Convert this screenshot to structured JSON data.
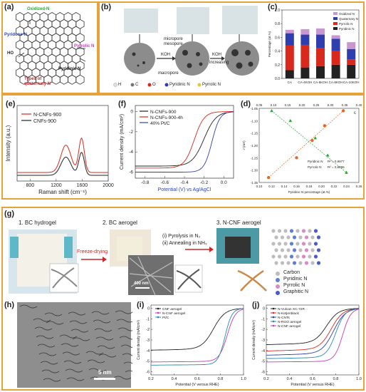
{
  "panels": {
    "a": {
      "label": "(a)",
      "labels": {
        "oxidized": "Oxidized-N",
        "pyridone": "Pyridone-N",
        "pyrrolic": "Pyrrolic N",
        "pyridinic": "Pyridinic N",
        "quat": "Types of quaternary N",
        "ho": "HO"
      }
    },
    "b": {
      "label": "(b)",
      "texts": {
        "micropore": "micropore",
        "mesopore": "mesopore",
        "macropore": "macropore",
        "koh1": "KOH",
        "koh2": "KOH",
        "increasing": "increasing"
      },
      "legend": [
        "H",
        "C",
        "O",
        "Pyridinic N",
        "Pyrrolic N"
      ]
    },
    "c": {
      "label": "(c)",
      "chart_data": {
        "type": "bar",
        "categories": [
          "CA",
          "CA-4KOH",
          "CA-6KOH",
          "CA-8KOH",
          "CA-10KOH"
        ],
        "series": [
          {
            "name": "Pyridinic N",
            "values": [
              0.12,
              0.16,
              0.18,
              0.2,
              0.2
            ]
          },
          {
            "name": "Pyrrolic N",
            "values": [
              0.36,
              0.33,
              0.26,
              0.2,
              0.08
            ]
          },
          {
            "name": "Quaternary N",
            "values": [
              0.18,
              0.15,
              0.2,
              0.18,
              0.15
            ]
          },
          {
            "name": "Oxidized N",
            "values": [
              0.05,
              0.08,
              0.09,
              0.05,
              0.1
            ]
          }
        ],
        "ylabel": "Percentage (at.%)",
        "ylim": [
          0,
          1.0
        ],
        "yticks": [
          "0.0",
          "0.2",
          "0.4",
          "0.6",
          "0.8",
          "1.0"
        ],
        "colors": [
          "#222222",
          "#D9291C",
          "#2E3EAE",
          "#C897D2"
        ]
      }
    },
    "d": {
      "label": "(d)",
      "chart_data": {
        "type": "scatter",
        "xlabel": "Pyridinic N percentage (at.%)",
        "ylabel": "J (mA)",
        "xticks_bottom": [
          "0.10",
          "0.12",
          "0.14",
          "0.16",
          "0.18",
          "0.20",
          "0.22",
          "0.24",
          "0.26"
        ],
        "xticks_top": [
          "0.05",
          "0.10",
          "0.15",
          "0.20",
          "0.25",
          "0.30",
          "0.35",
          "0.40"
        ],
        "yticks": [
          "-1.05",
          "-1.10",
          "-1.15",
          "-1.20",
          "-1.25",
          "-1.30",
          "-1.35"
        ],
        "corner_label": "c",
        "series": [
          {
            "name": "Pyridinic N",
            "r2": "R² = 0.9977",
            "x": [
              0.115,
              0.16,
              0.185,
              0.205,
              0.235
            ],
            "y": [
              -1.33,
              -1.25,
              -1.18,
              -1.12,
              -1.06
            ]
          },
          {
            "name": "Pyrrolic N",
            "r2": "R² = 0.8296",
            "x": [
              0.12,
              0.15,
              0.19,
              0.21,
              0.24
            ],
            "y": [
              -1.06,
              -1.1,
              -1.17,
              -1.24,
              -1.31
            ]
          }
        ]
      }
    },
    "e": {
      "label": "(e)",
      "chart_data": {
        "type": "line",
        "xlabel": "Raman shift (cm⁻¹)",
        "ylabel": "Intensity (a.u.)",
        "xlim": [
          600,
          2000
        ],
        "xticks": [
          "800",
          "1200",
          "1600",
          "2000"
        ],
        "series": [
          {
            "name": "N-CNFs-900",
            "color": "#D9291C"
          },
          {
            "name": "CNFs-900",
            "color": "#222222"
          }
        ]
      }
    },
    "f": {
      "label": "(f)",
      "chart_data": {
        "type": "line",
        "xlabel": "Potential (V) vs Ag/AgCl",
        "ylabel": "Current density (mA/cm²)",
        "xlim": [
          -0.9,
          0.1
        ],
        "xticks": [
          "-0.8",
          "-0.6",
          "-0.4",
          "-0.2",
          "0.0"
        ],
        "yticks": [
          "0",
          "-2",
          "-4",
          "-6"
        ],
        "series": [
          {
            "name": "N-CNFs-900",
            "color": "#222222"
          },
          {
            "name": "N-CNFs-900-4h",
            "color": "#D9291C"
          },
          {
            "name": "40% Pt/C",
            "color": "#2E3EAE"
          }
        ]
      }
    },
    "g": {
      "label": "(g)",
      "steps": {
        "s1": "1. BC hydrogel",
        "s2": "2. BC aerogel",
        "s3": "3. N-CNF aerogel",
        "freeze": "Freeze-drying",
        "pyro": "(i) Pyrolysis in N₂",
        "anneal": "(ii) Annealing in NH₃",
        "scale": "400 nm"
      },
      "legend": [
        "Carbon",
        "Pyridinic N",
        "Pyrrolic N",
        "Graphitic N"
      ],
      "legend_colors": [
        "#BDBDBD",
        "#5B7FD6",
        "#D88AC9",
        "#4A5ACF"
      ]
    },
    "h": {
      "label": "(h)",
      "scale": "5 nm"
    },
    "i": {
      "label": "(i)",
      "chart_data": {
        "type": "line",
        "xlabel": "Potential (V versus RHE)",
        "ylabel": "Current density (mA/cm²)",
        "xlim": [
          0.2,
          1.0
        ],
        "xticks": [
          "0.2",
          "0.4",
          "0.6",
          "0.8",
          "1.0"
        ],
        "yticks": [
          "0",
          "-1",
          "-2",
          "-3",
          "-4",
          "-5",
          "-6"
        ],
        "series": [
          {
            "name": "CNF aerogel",
            "color": "#222222"
          },
          {
            "name": "N-CNF aerogel",
            "color": "#C23CB8"
          },
          {
            "name": "Pt/C",
            "color": "#2A8AAE"
          }
        ]
      }
    },
    "j": {
      "label": "(j)",
      "chart_data": {
        "type": "line",
        "xlabel": "Potential (V versus RHE)",
        "ylabel": "Current density (mA/cm²)",
        "xlim": [
          0.2,
          1.0
        ],
        "xticks": [
          "0.2",
          "0.4",
          "0.6",
          "0.8",
          "1.0"
        ],
        "yticks": [
          "0",
          "-1",
          "-2",
          "-3",
          "-4",
          "-5",
          "-6"
        ],
        "series": [
          {
            "name": "N-Vulcan XC-72R",
            "color": "#222222"
          },
          {
            "name": "N-Ketjenblack",
            "color": "#D9291C"
          },
          {
            "name": "N-CNTs",
            "color": "#2E3EAE"
          },
          {
            "name": "N-RGO aerogel",
            "color": "#2A8AAE"
          },
          {
            "name": "N-CNF aerogel",
            "color": "#C23CB8"
          }
        ]
      }
    }
  }
}
